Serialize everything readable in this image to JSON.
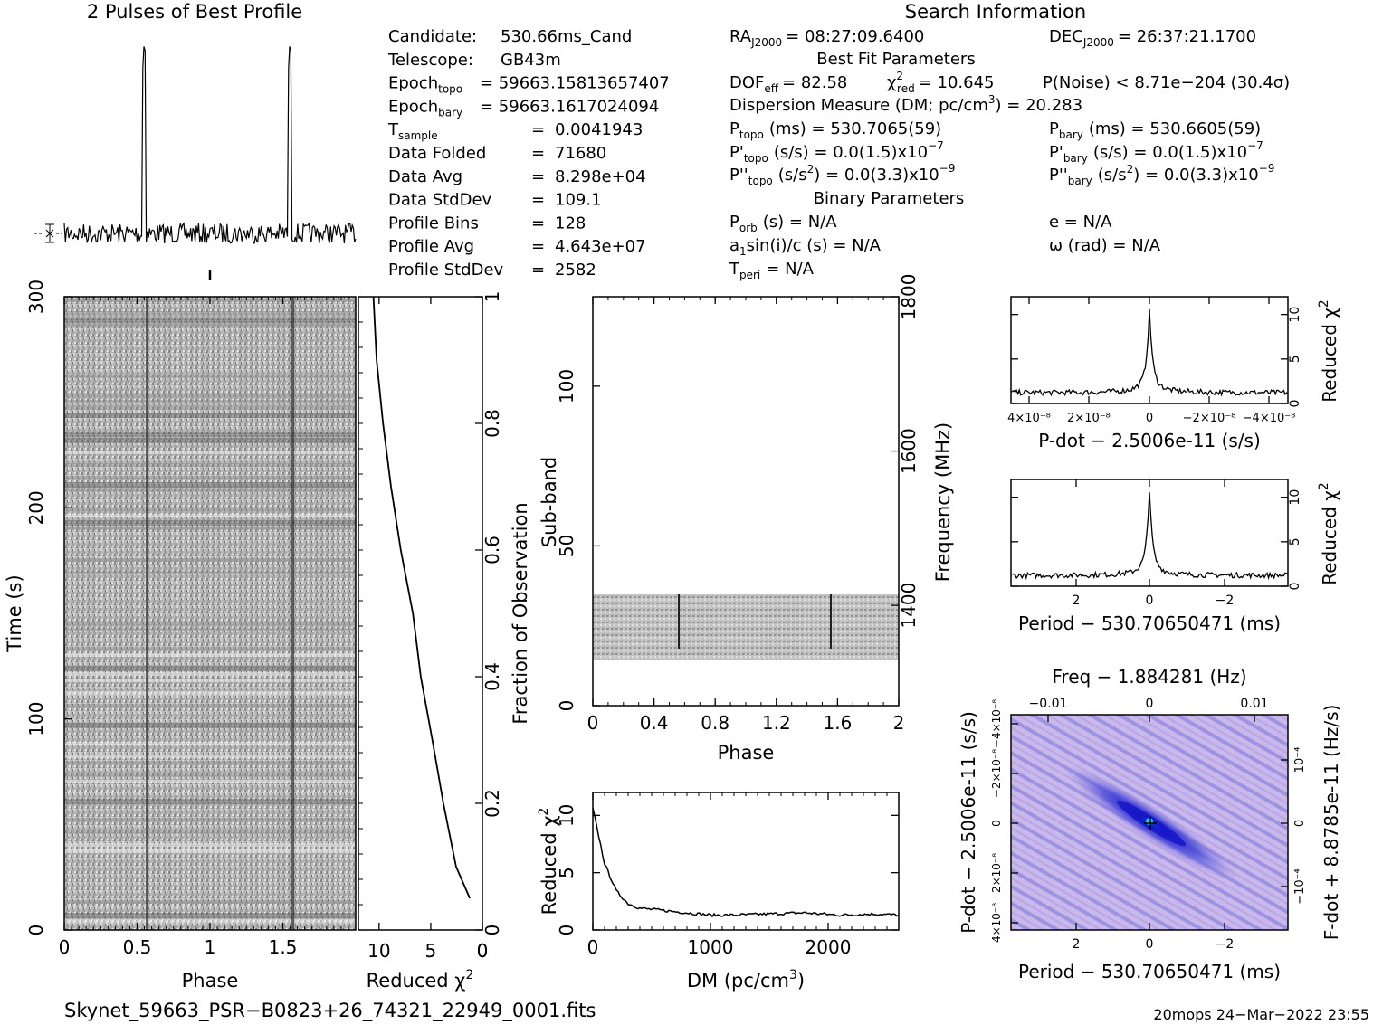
{
  "profile": {
    "title": "2 Pulses of Best Profile",
    "peak_phases": [
      0.55,
      1.55
    ]
  },
  "candidate_info": {
    "rows": [
      {
        "key": "Candidate:",
        "val": "530.66ms_Cand"
      },
      {
        "key": "Telescope:",
        "val": "GB43m"
      },
      {
        "key": "Epoch",
        "sub": "topo",
        "val": "= 59663.15813657407"
      },
      {
        "key": "Epoch",
        "sub": "bary",
        "val": "= 59663.1617024094"
      },
      {
        "key": "T",
        "sub": "sample",
        "eq": "=",
        "val": "0.0041943"
      },
      {
        "key": "Data Folded",
        "eq": "=",
        "val": "71680"
      },
      {
        "key": "Data Avg",
        "eq": "=",
        "val": "8.298e+04"
      },
      {
        "key": "Data StdDev",
        "eq": "=",
        "val": "109.1"
      },
      {
        "key": "Profile Bins",
        "eq": "=",
        "val": "128"
      },
      {
        "key": "Profile Avg",
        "eq": "=",
        "val": "4.643e+07"
      },
      {
        "key": "Profile StdDev",
        "eq": "=",
        "val": "2582"
      }
    ]
  },
  "search_info": {
    "title": "Search Information",
    "ra_label": "RA",
    "ra_sub": "J2000",
    "ra_val": "= 08:27:09.6400",
    "dec_label": "DEC",
    "dec_sub": "J2000",
    "dec_val": "= 26:37:21.1700",
    "best_fit_title": "Best Fit Parameters",
    "dof_label": "DOF",
    "dof_sub": "eff",
    "dof_val": "= 82.58",
    "chi_label": "χ",
    "chi_sup": "2",
    "chi_sub": "red",
    "chi_val": "= 10.645",
    "pnoise": "P(Noise) < 8.71e−204   (30.4σ)",
    "dm_text": "Dispersion Measure (DM; pc/cm",
    "dm_sup": "3",
    "dm_val": ") = 20.283",
    "ptopo_label": "P",
    "ptopo_sub": "topo",
    "ptopo_val": "(ms) =  530.7065(59)",
    "pbary_label": "P",
    "pbary_sub": "bary",
    "pbary_val": "(ms) =  530.6605(59)",
    "pdtopo_label": "P'",
    "pdtopo_sub": "topo",
    "pdtopo_val": "(s/s) = 0.0(1.5)x10",
    "pdtopo_exp": "−7",
    "pdbary_label": "P'",
    "pdbary_sub": "bary",
    "pdbary_val": "(s/s) = 0.0(1.5)x10",
    "pdbary_exp": "−7",
    "pddtopo_label": "P''",
    "pddtopo_sub": "topo",
    "pddtopo_val": "(s/s",
    "pddtopo_val2": ") = 0.0(3.3)x10",
    "pddtopo_exp": "−9",
    "pddbary_label": "P''",
    "pddbary_sub": "bary",
    "pddbary_val": "(s/s",
    "pddbary_val2": ") = 0.0(3.3)x10",
    "pddbary_exp": "−9",
    "binary_title": "Binary Parameters",
    "porb_label": "P",
    "porb_sub": "orb",
    "porb_val": "(s) = N/A",
    "e_text": "e = N/A",
    "a1_label": "a",
    "a1_sub": "1",
    "a1_val": "sin(i)/c (s) = N/A",
    "omega_text": "ω (rad) = N/A",
    "tperi_label": "T",
    "tperi_sub": "peri",
    "tperi_val": "= N/A"
  },
  "time_phase": {
    "xlabel": "Phase",
    "ylabel": "Time (s)",
    "xticks": [
      "0",
      "0.5",
      "1",
      "1.5"
    ],
    "yticks": [
      "0",
      "100",
      "200",
      "300"
    ],
    "xlim": [
      0,
      2
    ],
    "ylim": [
      0,
      300
    ]
  },
  "chi_vs_time": {
    "xlabel_main": "Reduced χ",
    "xlabel_sup": "2",
    "ylabel": "Fraction of Observation",
    "xticks": [
      "10",
      "5",
      "0"
    ],
    "yticks": [
      "0",
      "0.2",
      "0.4",
      "0.6",
      "0.8",
      "1"
    ],
    "xlim": [
      12,
      0
    ],
    "ylim": [
      0,
      1
    ]
  },
  "subband": {
    "xlabel": "Phase",
    "ylabel": "Sub-band",
    "ylabel_right": "Frequency (MHz)",
    "xticks": [
      "0",
      "0.4",
      "0.8",
      "1.2",
      "1.6",
      "2"
    ],
    "yticks": [
      "0",
      "50",
      "100"
    ],
    "right_ticks": [
      "1400",
      "1600",
      "1800"
    ],
    "xlim": [
      0,
      2
    ],
    "ylim": [
      0,
      128
    ]
  },
  "dm_plot": {
    "xlabel": "DM (pc/cm",
    "xlabel_sup": "3",
    "xlabel_end": ")",
    "ylabel": "Reduced χ",
    "ylabel_sup": "2",
    "xticks": [
      "0",
      "1000",
      "2000"
    ],
    "yticks": [
      "0",
      "5",
      "10"
    ],
    "xlim": [
      0,
      2600
    ],
    "ylim": [
      0,
      12
    ]
  },
  "pdot_plot": {
    "xlabel": "P-dot − 2.5006e-11 (s/s)",
    "ylabel": "Reduced χ",
    "ylabel_sup": "2",
    "xticks": [
      "4×10⁻⁸",
      "2×10⁻⁸",
      "0",
      "−2×10⁻⁸",
      "−4×10⁻⁸"
    ],
    "yticks": [
      "0",
      "5",
      "10"
    ]
  },
  "period_plot": {
    "xlabel": "Period − 530.70650471 (ms)",
    "ylabel": "Reduced χ",
    "ylabel_sup": "2",
    "xticks": [
      "2",
      "0",
      "−2"
    ],
    "yticks": [
      "0",
      "5",
      "10"
    ]
  },
  "ppdot_plot": {
    "top_label": "Freq − 1.884281 (Hz)",
    "top_ticks": [
      "−0.01",
      "0",
      "0.01"
    ],
    "xlabel": "Period − 530.70650471 (ms)",
    "xticks": [
      "2",
      "0",
      "−2"
    ],
    "ylabel": "P-dot − 2.5006e-11 (s/s)",
    "yticks": [
      "4×10⁻⁸",
      "2×10⁻⁸",
      "0",
      "−2×10⁻⁸",
      "−4×10⁻⁸"
    ],
    "ylabel_right": "F-dot + 8.8785e-11 (Hz/s)",
    "right_ticks": [
      "−10⁻⁴",
      "0",
      "10⁻⁴"
    ],
    "colors": {
      "bg": "#c8b4e6",
      "mid": "#7a7ae0",
      "deep": "#2a2ad0",
      "peak": "#00e0e0"
    }
  },
  "footer": {
    "filename": "Skynet_59663_PSR−B0823+26_74321_22949_0001.fits",
    "stamp": "20mops 24−Mar−2022 23:55"
  },
  "chart_data": [
    {
      "type": "line",
      "title": "2 Pulses of Best Profile",
      "x": [
        0,
        0.55,
        1.0,
        1.55,
        2.0
      ],
      "series": [
        {
          "values": [
            1.0,
            10.0,
            1.0,
            10.0,
            1.0
          ]
        }
      ],
      "xlim": [
        0,
        2
      ]
    },
    {
      "type": "line",
      "xlabel": "DM (pc/cm3)",
      "ylabel": "Reduced χ2",
      "x": [
        0,
        50,
        100,
        200,
        300,
        400,
        600,
        800,
        1000,
        1200,
        1500,
        1800,
        2100,
        2400,
        2600
      ],
      "series": [
        {
          "values": [
            10.6,
            8.2,
            5.8,
            3.4,
            2.3,
            1.9,
            1.7,
            1.5,
            1.3,
            1.3,
            1.4,
            1.5,
            1.3,
            1.4,
            1.3
          ]
        }
      ],
      "xlim": [
        0,
        2600
      ],
      "ylim": [
        0,
        12
      ]
    },
    {
      "type": "line",
      "xlabel": "Reduced χ2",
      "ylabel": "Fraction of Observation",
      "x": [
        0.05,
        0.1,
        0.2,
        0.3,
        0.4,
        0.5,
        0.6,
        0.7,
        0.8,
        0.9,
        1.0
      ],
      "series": [
        {
          "values": [
            1.2,
            2.6,
            3.8,
            4.9,
            5.9,
            6.8,
            7.9,
            8.9,
            9.6,
            10.3,
            10.6
          ]
        }
      ],
      "xlim": [
        12,
        0
      ],
      "ylim": [
        0,
        1
      ]
    },
    {
      "type": "line",
      "xlabel": "Period − 530.70650471 (ms)",
      "ylabel": "Reduced χ2",
      "x": [
        3.5,
        2,
        1,
        0.5,
        0.2,
        0,
        -0.2,
        -0.5,
        -1,
        -2,
        -3.5
      ],
      "series": [
        {
          "values": [
            1.2,
            1.2,
            1.5,
            2.5,
            5.0,
            10.6,
            5.0,
            2.5,
            1.5,
            1.2,
            1.2
          ]
        }
      ],
      "ylim": [
        0,
        12
      ]
    },
    {
      "type": "line",
      "xlabel": "P-dot − 2.5006e-11 (s/s)",
      "ylabel": "Reduced χ2",
      "x": [
        5e-08,
        2e-08,
        1e-08,
        3e-09,
        0,
        -3e-09,
        -1e-08,
        -2e-08,
        -5e-08
      ],
      "series": [
        {
          "values": [
            1.2,
            1.3,
            1.8,
            3.0,
            10.6,
            3.0,
            1.8,
            1.3,
            1.2
          ]
        }
      ],
      "ylim": [
        0,
        12
      ]
    }
  ]
}
